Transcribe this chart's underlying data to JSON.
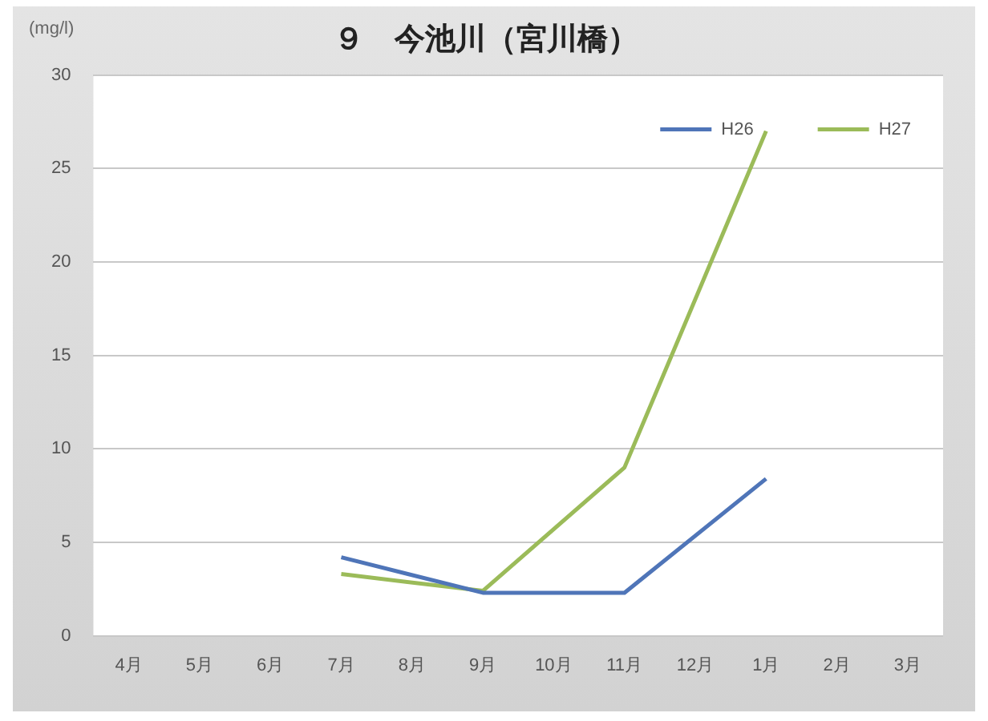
{
  "chart_data": {
    "type": "line",
    "title": "９　今池川（宮川橋）",
    "ylabel": "(mg/l)",
    "categories": [
      "4月",
      "5月",
      "6月",
      "7月",
      "8月",
      "9月",
      "10月",
      "11月",
      "12月",
      "1月",
      "2月",
      "3月"
    ],
    "series": [
      {
        "name": "H26",
        "color": "#4f75b8",
        "values": [
          null,
          null,
          null,
          4.2,
          null,
          2.3,
          null,
          2.3,
          null,
          8.4,
          null,
          null
        ]
      },
      {
        "name": "H27",
        "color": "#9bbb59",
        "values": [
          null,
          null,
          null,
          3.3,
          null,
          2.4,
          null,
          9.0,
          null,
          27.0,
          null,
          null
        ]
      }
    ],
    "ylim": [
      0,
      30
    ],
    "yticks": [
      0,
      5,
      10,
      15,
      20,
      25,
      30
    ],
    "grid": "y",
    "legend": "top right",
    "marker": "none"
  }
}
